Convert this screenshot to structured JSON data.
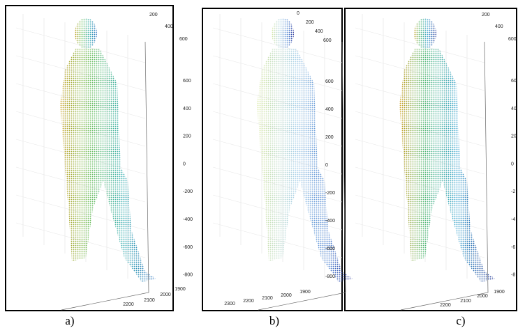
{
  "panels": [
    {
      "label": "a)",
      "top_ticks": [
        "200",
        "400",
        "600"
      ],
      "right_ticks": [
        "600",
        "400",
        "200",
        "0",
        "-200",
        "-400",
        "-600",
        "-800"
      ],
      "bottom_ticks": [
        "2200",
        "2100",
        "2000",
        "1900"
      ]
    },
    {
      "label": "b)",
      "top_ticks": [
        "0",
        "200",
        "400",
        "600"
      ],
      "right_ticks": [
        "600",
        "400",
        "200",
        "0",
        "-200",
        "-400",
        "-600",
        "-800"
      ],
      "bottom_ticks": [
        "2300",
        "2200",
        "2100",
        "2000",
        "1900"
      ]
    },
    {
      "label": "c)",
      "top_ticks": [
        "200",
        "400",
        "600"
      ],
      "right_ticks": [
        "60",
        "40",
        "20",
        "0",
        "-2",
        "-4",
        "-6",
        "-8"
      ],
      "bottom_ticks": [
        "2200",
        "2100",
        "2000",
        "1900"
      ]
    }
  ]
}
